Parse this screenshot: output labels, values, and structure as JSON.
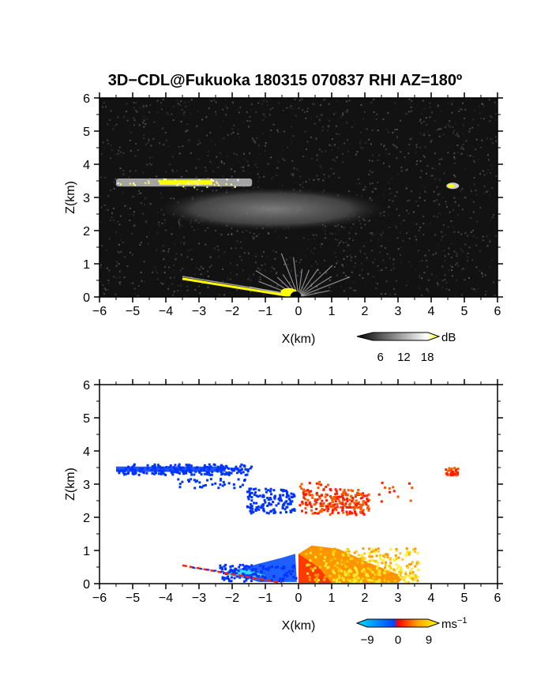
{
  "chart_data": [
    {
      "type": "heatmap",
      "title": "3D−CDL@Fukuoka 180315 070837 RHI AZ=180º",
      "xlabel": "X(km)",
      "ylabel": "Z(km)",
      "xlim": [
        -6,
        6
      ],
      "ylim": [
        0,
        6
      ],
      "xticks": [
        "−6",
        "−5",
        "−4",
        "−3",
        "−2",
        "−1",
        "0",
        "1",
        "2",
        "3",
        "4",
        "5",
        "6"
      ],
      "yticks": [
        "0",
        "1",
        "2",
        "3",
        "4",
        "5",
        "6"
      ],
      "background": "#121212",
      "quantity": "backscatter intensity",
      "colorbar": {
        "unit": "dB",
        "ticks": [
          "6",
          "12",
          "18"
        ],
        "range": [
          0,
          21
        ],
        "colors": [
          "#000000",
          "#ffffff",
          "#ffff00"
        ]
      },
      "features": [
        {
          "name": "upper layer (high intensity)",
          "x_range": [
            -5.5,
            -1.8
          ],
          "z": 3.45,
          "level_db": 18
        },
        {
          "name": "lower cloud base",
          "x_range": [
            -4.2,
            2.6
          ],
          "z_range": [
            2.0,
            3.3
          ],
          "level_db": 8
        },
        {
          "name": "isolated echo",
          "x_range": [
            4.4,
            4.8
          ],
          "z": 3.35,
          "level_db": 18
        },
        {
          "name": "near-ground return",
          "x_range": [
            -3.5,
            1.5
          ],
          "z_range": [
            0.0,
            0.9
          ],
          "level_db": 14
        }
      ]
    },
    {
      "type": "heatmap",
      "xlabel": "X(km)",
      "ylabel": "Z(km)",
      "xlim": [
        -6,
        6
      ],
      "ylim": [
        0,
        6
      ],
      "xticks": [
        "−6",
        "−5",
        "−4",
        "−3",
        "−2",
        "−1",
        "0",
        "1",
        "2",
        "3",
        "4",
        "5",
        "6"
      ],
      "yticks": [
        "0",
        "1",
        "2",
        "3",
        "4",
        "5",
        "6"
      ],
      "background": "#ffffff",
      "quantity": "radial velocity",
      "colorbar": {
        "unit": "ms",
        "unit_exponent": "−1",
        "ticks": [
          "−9",
          "0",
          "9"
        ],
        "range": [
          -12,
          12
        ],
        "colors": [
          "#00e0ff",
          "#0044ff",
          "#ff0000",
          "#ffaa00",
          "#ffff00"
        ]
      },
      "features": [
        {
          "name": "upper layer",
          "x_range": [
            -5.5,
            -1.4
          ],
          "z": 3.45,
          "velocity": -9
        },
        {
          "name": "scattered mid-level",
          "x_range": [
            -3.9,
            -0.1
          ],
          "z_range": [
            2.2,
            3.2
          ],
          "velocity": -8
        },
        {
          "name": "mid-level cluster east",
          "x_range": [
            0.0,
            2.5
          ],
          "z_range": [
            2.0,
            3.2
          ],
          "velocity": 2
        },
        {
          "name": "isolated echo",
          "x_range": [
            4.4,
            4.8
          ],
          "z": 3.4,
          "velocity": 2
        },
        {
          "name": "near-ground flow west",
          "x_range": [
            -3.5,
            -0.1
          ],
          "z_range": [
            0.0,
            0.9
          ],
          "velocity": -9
        },
        {
          "name": "near-ground flow east",
          "x_range": [
            0.0,
            3.6
          ],
          "z_range": [
            0.0,
            1.3
          ],
          "velocity": 6
        }
      ]
    }
  ]
}
